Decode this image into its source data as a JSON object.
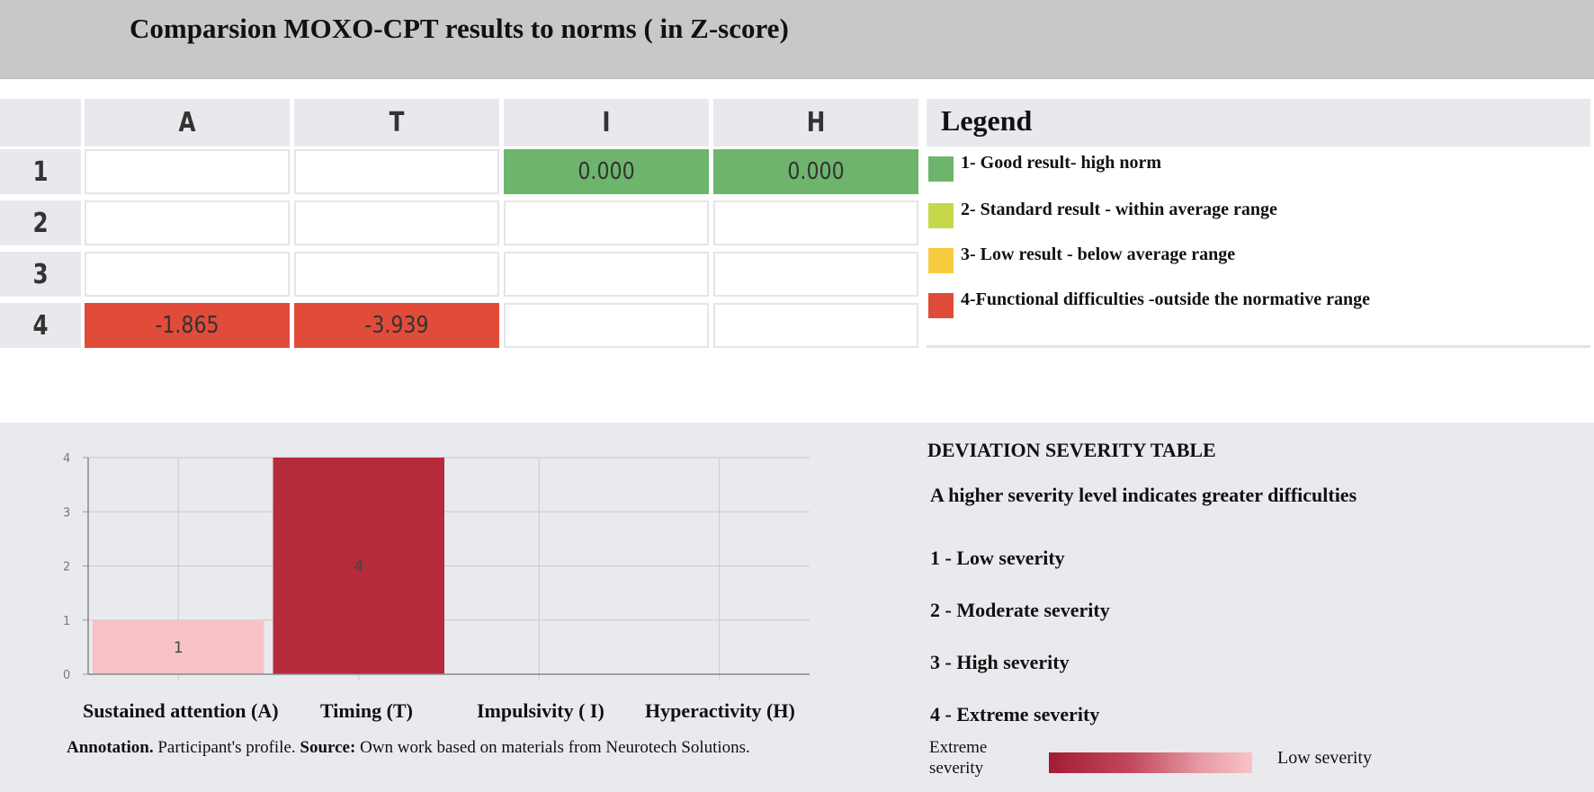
{
  "title": "Comparsion MOXO-CPT results to norms ( in Z-score)",
  "table": {
    "columns": [
      "A",
      "T",
      "I",
      "H"
    ],
    "rows": [
      {
        "label": "1",
        "cells": [
          "",
          "",
          "0.000",
          "0.000"
        ],
        "colors": [
          "",
          "",
          "green",
          "green"
        ]
      },
      {
        "label": "2",
        "cells": [
          "",
          "",
          "",
          ""
        ],
        "colors": [
          "",
          "",
          "",
          ""
        ]
      },
      {
        "label": "3",
        "cells": [
          "",
          "",
          "",
          ""
        ],
        "colors": [
          "",
          "",
          "",
          ""
        ]
      },
      {
        "label": "4",
        "cells": [
          "-1.865",
          "-3.939",
          "",
          ""
        ],
        "colors": [
          "red",
          "red",
          "",
          ""
        ]
      }
    ]
  },
  "legend": {
    "title": "Legend",
    "items": [
      {
        "label": "1- Good result- high norm",
        "color": "#6db56d"
      },
      {
        "label": "2- Standard result - within average range",
        "color": "#c6d74a"
      },
      {
        "label": "3- Low result - below average range",
        "color": "#f7cb3e"
      },
      {
        "label": "4-Functional difficulties -outside the normative range",
        "color": "#e14c3a"
      }
    ]
  },
  "chart_data": {
    "type": "bar",
    "categories": [
      "Sustained attention (A)",
      "Timing   (T)",
      "Impulsivity ( I)",
      "Hyperactivity (H)"
    ],
    "values": [
      1,
      4,
      null,
      null
    ],
    "data_labels": [
      "1",
      "4",
      "",
      ""
    ],
    "colors": [
      "#f7c2c6",
      "#b52b3a",
      "",
      ""
    ],
    "ylim": [
      0,
      4
    ],
    "yticks": [
      "0",
      "1",
      "2",
      "3",
      "4"
    ],
    "grid": true
  },
  "annotation": {
    "label1": "Annotation.",
    "text1": " Participant's profile. ",
    "label2": "Source:",
    "text2": " Own work based on materials from Neurotech Solutions."
  },
  "severity": {
    "title": "DEVIATION SEVERITY TABLE",
    "note": "A higher severity level indicates greater difficulties",
    "items": [
      "1 - Low severity",
      "2 - Moderate severity",
      "3 - High severity",
      "4 - Extreme severity"
    ],
    "scale_left": "Extreme severity",
    "scale_right": "Low severity"
  }
}
